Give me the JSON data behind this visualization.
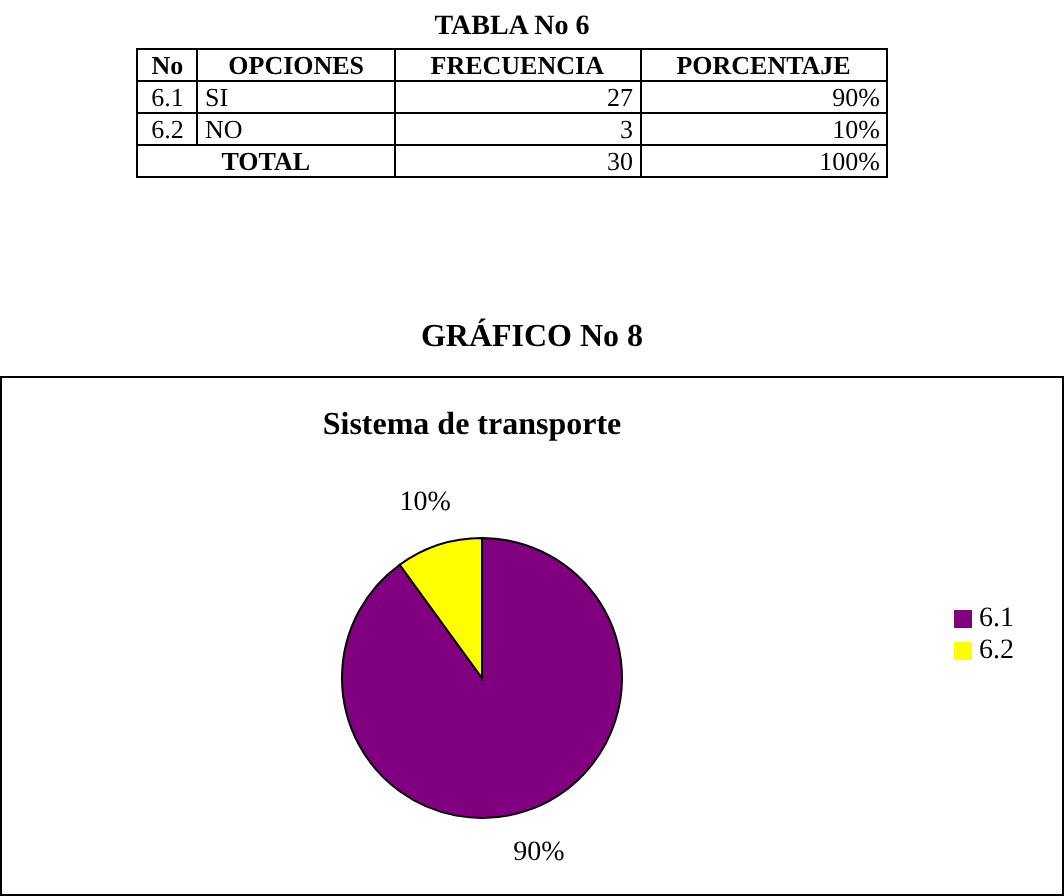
{
  "chart_data": {
    "type": "pie",
    "title": "GRÁFICO No 8",
    "subtitle": "Sistema de transporte",
    "categories": [
      "6.1",
      "6.2"
    ],
    "values": [
      90,
      10
    ],
    "value_labels": [
      "90%",
      "10%"
    ],
    "colors": [
      "#800080",
      "#ffff00"
    ],
    "legend": "right",
    "annotations": [
      "TABLA No 6",
      "No",
      "OPCIONES",
      "FRECUENCIA",
      "PORCENTAJE",
      "6.1",
      "SI",
      "27",
      "90%",
      "6.2",
      "NO",
      "3",
      "10%",
      "TOTAL",
      "30",
      "100%"
    ]
  }
}
